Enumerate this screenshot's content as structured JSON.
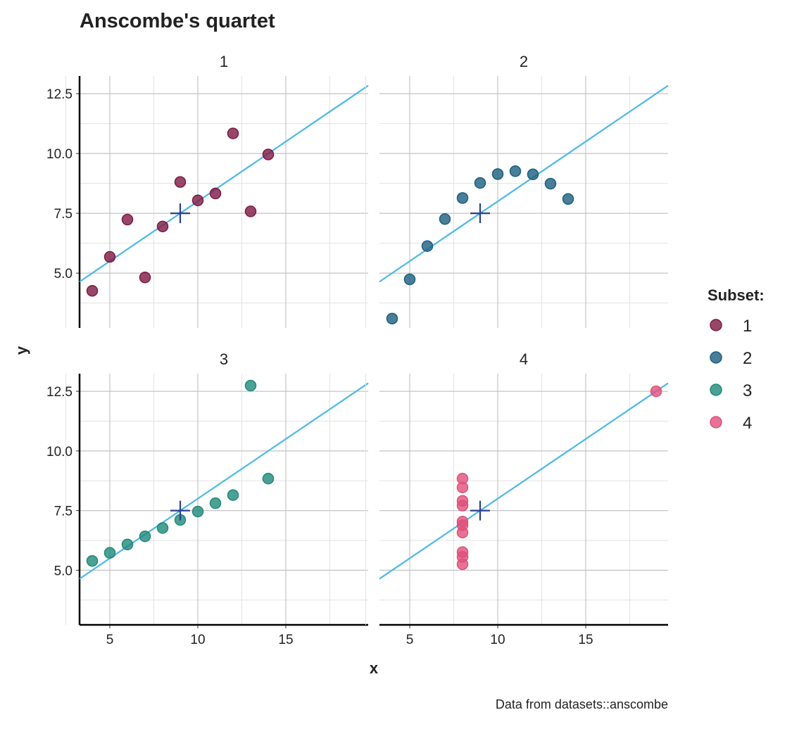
{
  "chart_data": {
    "type": "scatter",
    "title": "Anscombe's quartet",
    "xlabel": "x",
    "ylabel": "y",
    "caption": "Data from datasets::anscombe",
    "legend": {
      "title": "Subset:",
      "placement": "right"
    },
    "xlim": [
      3.28,
      19.68
    ],
    "ylim": [
      2.71,
      13.24
    ],
    "x_ticks": [
      5,
      10,
      15
    ],
    "y_ticks": [
      "5.0",
      "7.5",
      "10.0",
      "12.5"
    ],
    "grid": true,
    "fit_line": {
      "intercept": 3,
      "slope": 0.5,
      "color": "#4bb9e6"
    },
    "mean_marker": {
      "x": 9,
      "y": 7.5,
      "color": "#2e3e8c"
    },
    "panels": [
      {
        "name": "1",
        "color": "#7d1a44",
        "x": [
          10,
          8,
          13,
          9,
          11,
          14,
          6,
          4,
          12,
          7,
          5
        ],
        "y": [
          8.04,
          6.95,
          7.58,
          8.81,
          8.33,
          9.96,
          7.24,
          4.26,
          10.84,
          4.82,
          5.68
        ]
      },
      {
        "name": "2",
        "color": "#1b5f7e",
        "x": [
          10,
          8,
          13,
          9,
          11,
          14,
          6,
          4,
          12,
          7,
          5
        ],
        "y": [
          9.14,
          8.14,
          8.74,
          8.77,
          9.26,
          8.1,
          6.13,
          3.1,
          9.13,
          7.26,
          4.74
        ]
      },
      {
        "name": "3",
        "color": "#1f8a7a",
        "x": [
          10,
          8,
          13,
          9,
          11,
          14,
          6,
          4,
          12,
          7,
          5
        ],
        "y": [
          7.46,
          6.77,
          12.74,
          7.11,
          7.81,
          8.84,
          6.08,
          5.39,
          8.15,
          6.42,
          5.73
        ]
      },
      {
        "name": "4",
        "color": "#e0507a",
        "x": [
          8,
          8,
          8,
          8,
          8,
          8,
          8,
          19,
          8,
          8,
          8
        ],
        "y": [
          6.58,
          5.76,
          7.71,
          8.84,
          8.47,
          7.04,
          5.25,
          12.5,
          5.56,
          7.91,
          6.89
        ]
      }
    ]
  }
}
